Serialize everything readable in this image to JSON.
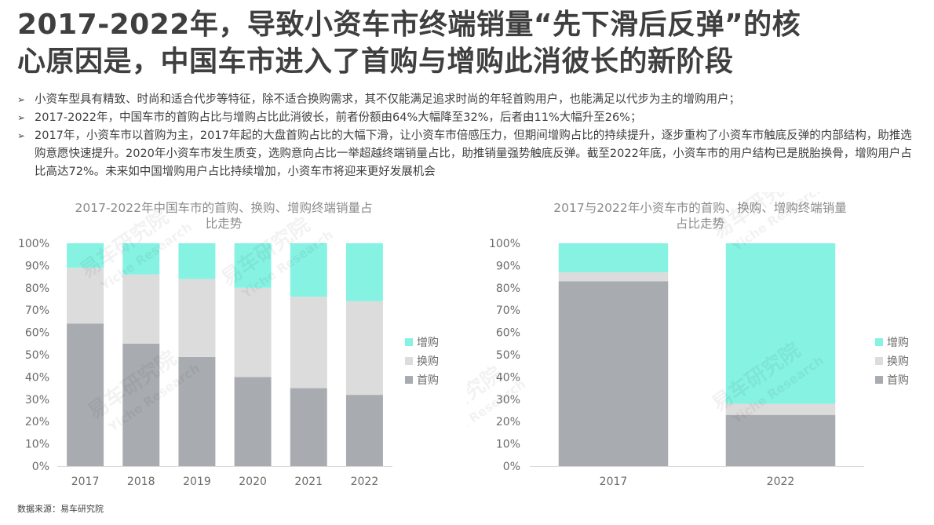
{
  "page": {
    "title_line1": "2017-2022年，导致小资车市终端销量“先下滑后反弹”的核",
    "title_line2": "心原因是，中国车市进入了首购与增购此消彼长的新阶段",
    "bullet_marker": "➢",
    "bullets": [
      "小资车型具有精致、时尚和适合代步等特征，除不适合换购需求，其不仅能满足追求时尚的年轻首购用户，也能满足以代步为主的增购用户；",
      "2017-2022年，中国车市的首购占比与增购占比此消彼长，前者份额由64%大幅降至32%，后者由11%大幅升至26%；",
      "2017年，小资车市以首购为主，2017年起的大盘首购占比的大幅下滑，让小资车市倍感压力，但期间增购占比的持续提升，逐步重构了小资车市触底反弹的内部结构，助推选购意愿快速提升。2020年小资车市发生质变，选购意向占比一举超越终端销量占比，助推销量强势触底反弹。截至2022年底，小资车市的用户结构已是脱胎换骨，增购用户占比高达72%。未来如中国增购用户占比持续增加，小资车市将迎来更好发展机会"
    ],
    "source": "数据来源：易车研究院",
    "watermark_cn": "易车研究院",
    "watermark_en": "Yiche Research"
  },
  "chart_data": [
    {
      "type": "bar",
      "stacked": true,
      "title_line1": "2017-2022年中国车市的首购、换购、增购终端销量占",
      "title_line2": "比走势",
      "categories": [
        "2017",
        "2018",
        "2019",
        "2020",
        "2021",
        "2022"
      ],
      "series": [
        {
          "name": "首购",
          "values": [
            64,
            55,
            49,
            40,
            35,
            32
          ],
          "color": "#a8acb0"
        },
        {
          "name": "换购",
          "values": [
            25,
            31,
            35,
            40,
            41,
            42
          ],
          "color": "#dcdcdc"
        },
        {
          "name": "增购",
          "values": [
            11,
            14,
            16,
            20,
            24,
            26
          ],
          "color": "#86f2e2"
        }
      ],
      "ylim": [
        0,
        100
      ],
      "yticks": [
        "0%",
        "10%",
        "20%",
        "30%",
        "40%",
        "50%",
        "60%",
        "70%",
        "80%",
        "90%",
        "100%"
      ],
      "legend": "right",
      "grid": false
    },
    {
      "type": "bar",
      "stacked": true,
      "title_line1": "2017与2022年小资车市的首购、换购、增购终端销量",
      "title_line2": "占比走势",
      "categories": [
        "2017",
        "2022"
      ],
      "series": [
        {
          "name": "首购",
          "values": [
            83,
            23
          ],
          "color": "#a8acb0"
        },
        {
          "name": "换购",
          "values": [
            4,
            5
          ],
          "color": "#dcdcdc"
        },
        {
          "name": "增购",
          "values": [
            13,
            72
          ],
          "color": "#86f2e2"
        }
      ],
      "ylim": [
        0,
        100
      ],
      "yticks": [
        "0%",
        "10%",
        "20%",
        "30%",
        "40%",
        "50%",
        "60%",
        "70%",
        "80%",
        "90%",
        "100%"
      ],
      "legend": "right",
      "grid": false
    }
  ]
}
